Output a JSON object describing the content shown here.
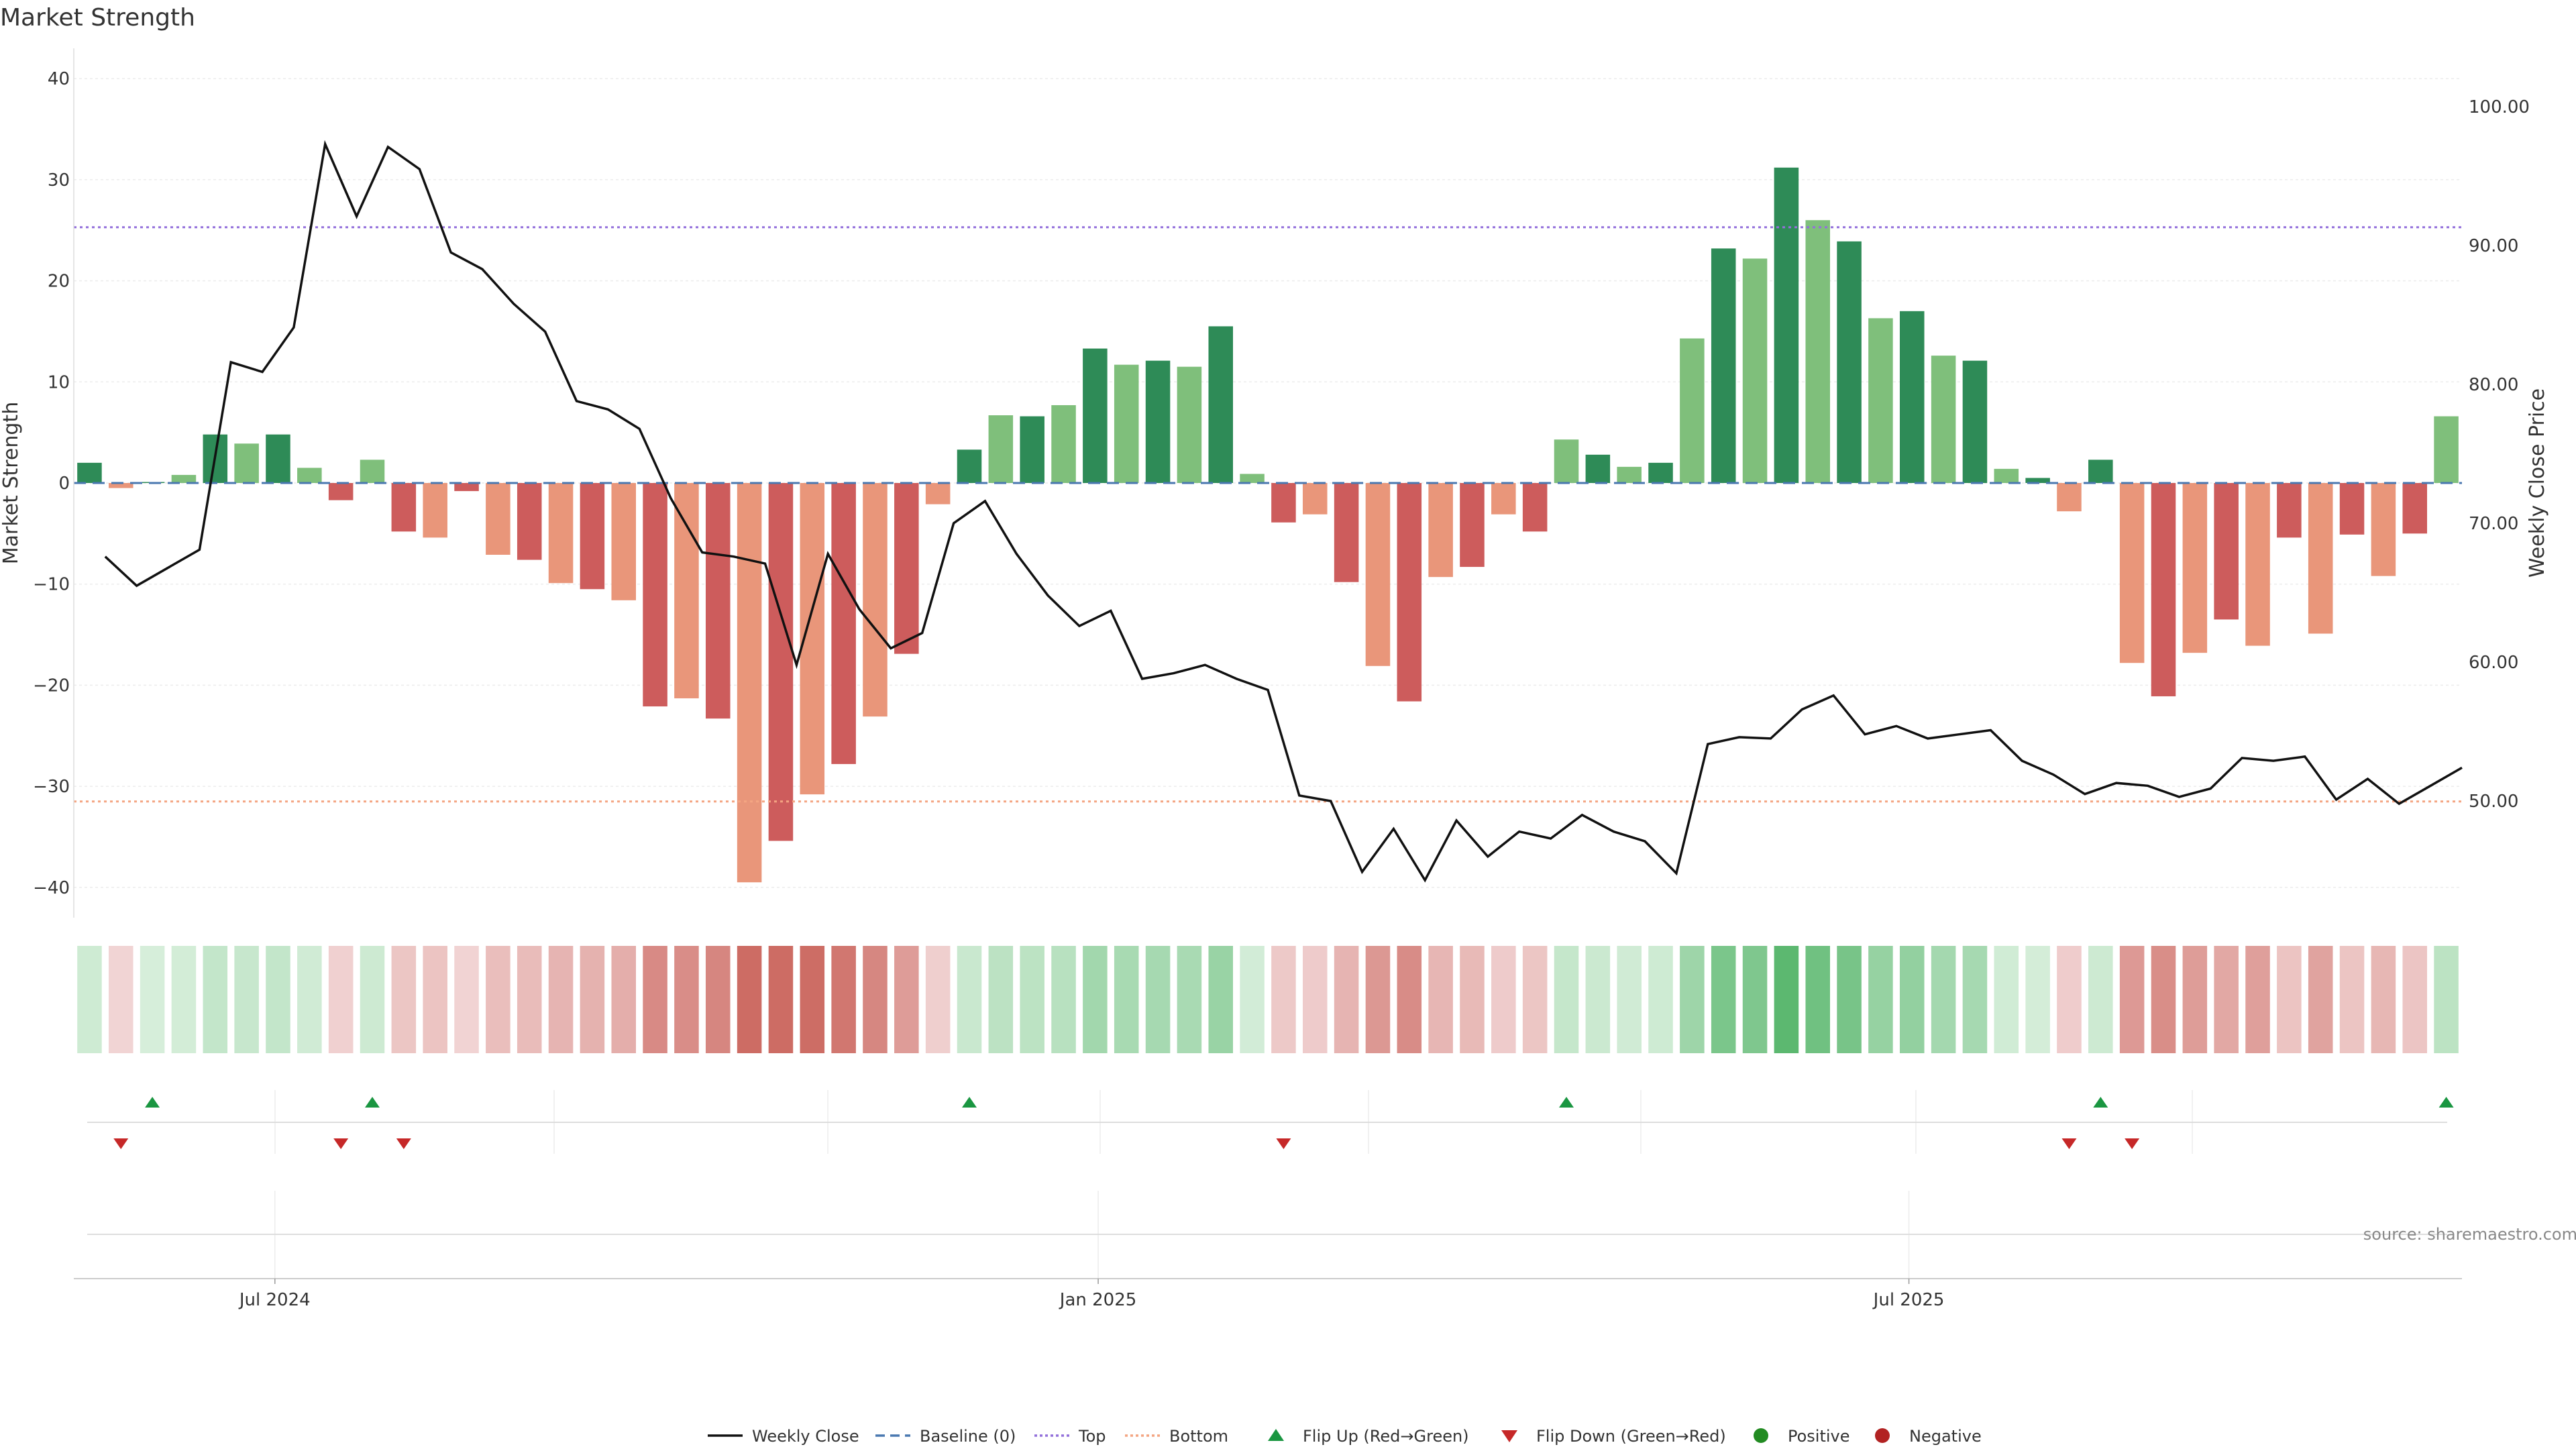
{
  "chart_data": {
    "type": "bar",
    "title": "Market Strength",
    "ylabel_left": "Market Strength",
    "ylabel_right": "Weekly Close Price",
    "ylim_left": [
      -43,
      43
    ],
    "ylim_right": [
      41.6,
      104.2
    ],
    "left_ticks": [
      "40",
      "30",
      "20",
      "10",
      "0",
      "−10",
      "−20",
      "−30",
      "−40"
    ],
    "left_tick_values": [
      40,
      30,
      20,
      10,
      0,
      -10,
      -20,
      -30,
      -40
    ],
    "right_ticks": [
      "100.00",
      "90.00",
      "80.00",
      "70.00",
      "60.00",
      "50.00"
    ],
    "right_tick_values": [
      100,
      90,
      80,
      70,
      60,
      50
    ],
    "x_ticks": [
      {
        "label": "Jul 2024",
        "index": 6.4
      },
      {
        "label": "Jan 2025",
        "index": 32.6
      },
      {
        "label": "Jul 2025",
        "index": 58.4
      }
    ],
    "baseline": 0,
    "top_line": 25.3,
    "bottom_line": -31.5,
    "strength": [
      2.0,
      -0.5,
      0.1,
      0.8,
      4.8,
      3.9,
      4.8,
      1.5,
      -1.7,
      2.3,
      -4.8,
      -5.4,
      -0.8,
      -7.1,
      -7.6,
      -9.9,
      -10.5,
      -11.6,
      -22.1,
      -21.3,
      -23.3,
      -39.5,
      -35.4,
      -30.8,
      -27.8,
      -23.1,
      -16.9,
      -2.1,
      3.3,
      6.7,
      6.6,
      7.7,
      13.3,
      11.7,
      12.1,
      11.5,
      15.5,
      0.9,
      -3.9,
      -3.1,
      -9.8,
      -18.1,
      -21.6,
      -9.3,
      -8.3,
      -3.1,
      -4.8,
      4.3,
      2.8,
      1.6,
      2.0,
      14.3,
      23.2,
      22.2,
      31.2,
      26.0,
      23.9,
      16.3,
      17.0,
      12.6,
      12.1,
      1.4,
      0.5,
      -2.8,
      2.3,
      -17.8,
      -21.1,
      -16.8,
      -13.5,
      -16.1,
      -5.4,
      -14.9,
      -5.1,
      -9.2,
      -5.0,
      6.6
    ],
    "price": [
      67.6,
      65.5,
      66.8,
      68.1,
      81.6,
      80.9,
      84.1,
      97.3,
      92.1,
      97.1,
      95.5,
      89.5,
      88.3,
      85.8,
      83.8,
      78.8,
      78.2,
      76.8,
      71.8,
      67.9,
      67.6,
      67.1,
      59.8,
      67.8,
      63.8,
      61.0,
      62.1,
      70.0,
      71.6,
      67.8,
      64.8,
      62.6,
      63.7,
      58.8,
      59.2,
      59.8,
      58.8,
      58.0,
      50.4,
      50.0,
      44.9,
      48.0,
      44.3,
      48.6,
      46.0,
      47.8,
      47.3,
      49.0,
      47.8,
      47.1,
      44.8,
      54.1,
      54.6,
      54.5,
      56.6,
      57.6,
      54.8,
      55.4,
      54.5,
      54.8,
      55.1,
      52.9,
      51.9,
      50.5,
      51.3,
      51.1,
      50.3,
      50.9,
      53.1,
      52.9,
      53.2,
      50.1,
      51.6,
      49.8,
      51.1,
      52.4
    ],
    "flip_up": [
      2,
      9,
      28,
      47,
      64,
      75
    ],
    "flip_down": [
      1,
      8,
      10,
      38,
      63,
      65
    ],
    "legend": [
      "Weekly Close",
      "Baseline (0)",
      "Top",
      "Bottom",
      "Flip Up (Red→Green)",
      "Flip Down (Green→Red)",
      "Positive",
      "Negative"
    ],
    "colors": {
      "strong_green": "#2e8b57",
      "light_green": "#7fbf7b",
      "strong_red": "#cd5c5c",
      "light_red": "#e9967a",
      "price_line": "#111111",
      "baseline": "#4a78b0",
      "top": "#9370db",
      "bottom": "#f4a582",
      "flip_up": "#1a9641",
      "flip_down": "#c62828",
      "positive_dot": "#228b22",
      "negative_dot": "#b22222"
    }
  },
  "source": "source: sharemaestro.com"
}
